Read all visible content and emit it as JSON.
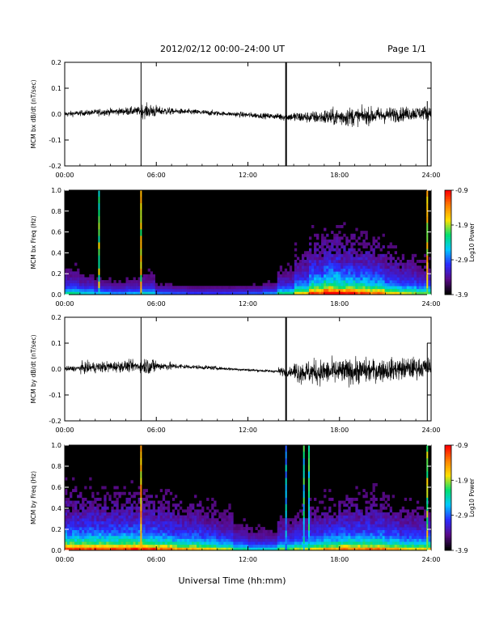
{
  "header": {
    "title": "2012/02/12  00:00–24:00 UT",
    "page": "Page 1/1"
  },
  "footer": {
    "xlabel": "Universal Time (hh:mm)"
  },
  "colors": {
    "trace": "#000000",
    "spectrogram_background": "#000000",
    "colorbar_stops": [
      "#000000",
      "#5a0a8a",
      "#2a2aff",
      "#00c8ff",
      "#00e070",
      "#ffe000",
      "#ff8000",
      "#ff0000"
    ]
  },
  "chart_data": [
    {
      "type": "line",
      "id": "bx-series",
      "ylabel": "MCM bx dB/dt (nT/sec)",
      "xlim": [
        "00:00",
        "24:00"
      ],
      "ylim": [
        -0.2,
        0.2
      ],
      "x_tick_labels": [
        "00:00",
        "06:00",
        "12:00",
        "18:00",
        "24:00"
      ],
      "y_tick_labels": [
        "0.2",
        "0.1",
        "0.0",
        "-0.1",
        "-0.2"
      ],
      "envelope_by_hour": [
        0.02,
        0.02,
        0.025,
        0.025,
        0.03,
        0.05,
        0.03,
        0.02,
        0.02,
        0.02,
        0.015,
        0.02,
        0.02,
        0.02,
        0.03,
        0.04,
        0.045,
        0.06,
        0.07,
        0.06,
        0.06,
        0.055,
        0.05,
        0.05
      ],
      "spikes": [
        {
          "time": "05:00",
          "min": -0.2,
          "max": 0.2
        },
        {
          "time": "14:30",
          "min": -0.2,
          "max": 0.2
        },
        {
          "time": "23:45",
          "min": -0.2,
          "max": 0.05
        }
      ]
    },
    {
      "type": "heatmap",
      "id": "bx-spectrogram",
      "ylabel": "MCM bx Freq (Hz)",
      "xlim": [
        "00:00",
        "24:00"
      ],
      "ylim": [
        0.0,
        1.0
      ],
      "x_tick_labels": [
        "00:00",
        "06:00",
        "12:00",
        "18:00",
        "24:00"
      ],
      "y_tick_labels": [
        "1.0",
        "0.8",
        "0.6",
        "0.4",
        "0.2",
        "0.0"
      ],
      "colorbar": {
        "label": "Log10 Power",
        "min": -3.9,
        "max": -0.9,
        "tick_labels": [
          "-0.9",
          "-1.9",
          "-2.9",
          "-3.9"
        ]
      },
      "activity_by_hour": [
        0.25,
        0.2,
        0.15,
        0.12,
        0.15,
        0.2,
        0.1,
        0.08,
        0.06,
        0.06,
        0.06,
        0.07,
        0.08,
        0.12,
        0.25,
        0.4,
        0.55,
        0.65,
        0.6,
        0.55,
        0.5,
        0.4,
        0.35,
        0.3
      ],
      "vertical_lines": [
        {
          "time": "02:15",
          "level": 0.55
        },
        {
          "time": "05:00",
          "level": 0.65
        },
        {
          "time": "23:45",
          "level": 0.7
        }
      ]
    },
    {
      "type": "line",
      "id": "by-series",
      "ylabel": "MCM by dB/dt (nT/sec)",
      "xlim": [
        "00:00",
        "24:00"
      ],
      "ylim": [
        -0.2,
        0.2
      ],
      "x_tick_labels": [
        "00:00",
        "06:00",
        "12:00",
        "18:00",
        "24:00"
      ],
      "y_tick_labels": [
        "0.2",
        "0.1",
        "0.0",
        "-0.1",
        "-0.2"
      ],
      "envelope_by_hour": [
        0.02,
        0.04,
        0.04,
        0.04,
        0.04,
        0.06,
        0.03,
        0.02,
        0.015,
        0.015,
        0.01,
        0.01,
        0.01,
        0.01,
        0.03,
        0.08,
        0.09,
        0.09,
        0.09,
        0.09,
        0.08,
        0.08,
        0.08,
        0.07
      ],
      "spikes": [
        {
          "time": "05:00",
          "min": -0.2,
          "max": 0.2
        },
        {
          "time": "14:30",
          "min": -0.2,
          "max": 0.2
        },
        {
          "time": "23:45",
          "min": -0.2,
          "max": 0.1
        }
      ]
    },
    {
      "type": "heatmap",
      "id": "by-spectrogram",
      "ylabel": "MCM by Freq (Hz)",
      "xlim": [
        "00:00",
        "24:00"
      ],
      "ylim": [
        0.0,
        1.0
      ],
      "x_tick_labels": [
        "00:00",
        "06:00",
        "12:00",
        "18:00",
        "24:00"
      ],
      "y_tick_labels": [
        "1.0",
        "0.8",
        "0.6",
        "0.4",
        "0.2",
        "0.0"
      ],
      "colorbar": {
        "label": "Log10 Power",
        "min": -3.9,
        "max": -0.9,
        "tick_labels": [
          "-0.9",
          "-1.9",
          "-2.9",
          "-3.9"
        ]
      },
      "activity_by_hour": [
        0.55,
        0.55,
        0.55,
        0.55,
        0.55,
        0.55,
        0.5,
        0.45,
        0.45,
        0.4,
        0.35,
        0.25,
        0.2,
        0.2,
        0.3,
        0.35,
        0.4,
        0.45,
        0.5,
        0.5,
        0.5,
        0.45,
        0.4,
        0.4
      ],
      "vertical_lines": [
        {
          "time": "05:00",
          "level": 0.7
        },
        {
          "time": "14:30",
          "level": 0.35
        },
        {
          "time": "15:40",
          "level": 0.45
        },
        {
          "time": "16:00",
          "level": 0.45
        },
        {
          "time": "23:45",
          "level": 0.6
        }
      ]
    }
  ]
}
